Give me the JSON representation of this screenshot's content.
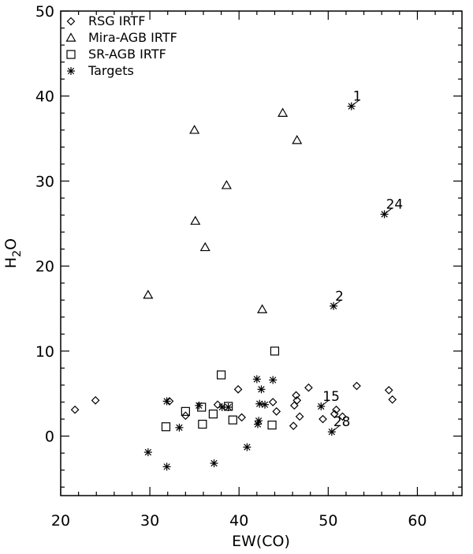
{
  "chart_data": {
    "type": "scatter",
    "title": "",
    "xlabel": "EW(CO)",
    "ylabel_base": "H",
    "ylabel_sub": "2",
    "ylabel_tail": "O",
    "xlim": [
      20,
      65
    ],
    "ylim": [
      -7,
      50
    ],
    "x_ticks": [
      20,
      30,
      40,
      50,
      60
    ],
    "y_ticks": [
      0,
      10,
      20,
      30,
      40,
      50
    ],
    "grid": false,
    "legend_position": "top-left",
    "series": [
      {
        "name": "RSG IRTF",
        "marker": "diamond",
        "points": [
          [
            21.6,
            3.1
          ],
          [
            23.9,
            4.2
          ],
          [
            32.2,
            4.1
          ],
          [
            34.0,
            2.4
          ],
          [
            37.6,
            3.7
          ],
          [
            39.9,
            5.5
          ],
          [
            40.3,
            2.2
          ],
          [
            43.8,
            4.0
          ],
          [
            44.2,
            2.9
          ],
          [
            46.1,
            1.2
          ],
          [
            46.2,
            3.6
          ],
          [
            46.4,
            4.8
          ],
          [
            46.5,
            4.2
          ],
          [
            46.8,
            2.3
          ],
          [
            47.8,
            5.7
          ],
          [
            49.4,
            2.0
          ],
          [
            50.7,
            2.6
          ],
          [
            50.9,
            3.1
          ],
          [
            51.6,
            2.3
          ],
          [
            53.2,
            5.9
          ],
          [
            56.8,
            5.4
          ],
          [
            57.2,
            4.3
          ]
        ]
      },
      {
        "name": "Mira-AGB IRTF",
        "marker": "triangle",
        "points": [
          [
            29.8,
            16.6
          ],
          [
            35.0,
            36.0
          ],
          [
            35.1,
            25.3
          ],
          [
            36.2,
            22.2
          ],
          [
            38.6,
            29.5
          ],
          [
            42.6,
            14.9
          ],
          [
            44.9,
            38.0
          ],
          [
            46.5,
            34.8
          ]
        ]
      },
      {
        "name": "SR-AGB IRTF",
        "marker": "square",
        "points": [
          [
            31.8,
            1.1
          ],
          [
            34.0,
            2.9
          ],
          [
            35.8,
            3.4
          ],
          [
            35.9,
            1.4
          ],
          [
            37.1,
            2.6
          ],
          [
            38.0,
            7.2
          ],
          [
            38.8,
            3.5
          ],
          [
            39.3,
            1.9
          ],
          [
            43.7,
            1.3
          ],
          [
            44.0,
            10.0
          ]
        ]
      },
      {
        "name": "Targets",
        "marker": "asterisk",
        "points": [
          [
            29.8,
            -1.9
          ],
          [
            31.9,
            -3.6
          ],
          [
            31.9,
            4.1
          ],
          [
            33.3,
            1.0
          ],
          [
            35.5,
            3.6
          ],
          [
            37.2,
            -3.2
          ],
          [
            38.1,
            3.4
          ],
          [
            38.8,
            3.4
          ],
          [
            40.9,
            -1.3
          ],
          [
            42.0,
            6.7
          ],
          [
            42.1,
            1.4
          ],
          [
            42.2,
            1.8
          ],
          [
            42.3,
            3.8
          ],
          [
            42.5,
            5.5
          ],
          [
            42.9,
            3.7
          ],
          [
            43.8,
            6.6
          ],
          [
            49.2,
            3.5
          ],
          [
            50.4,
            0.5
          ],
          [
            50.6,
            15.3
          ],
          [
            52.6,
            38.8
          ],
          [
            56.3,
            26.1
          ]
        ]
      }
    ],
    "annotations": [
      {
        "text": "1",
        "x": 52.6,
        "y": 38.8
      },
      {
        "text": "24",
        "x": 56.3,
        "y": 26.1
      },
      {
        "text": "2",
        "x": 50.6,
        "y": 15.3
      },
      {
        "text": "15",
        "x": 49.2,
        "y": 3.5
      },
      {
        "text": "28",
        "x": 50.4,
        "y": 0.5
      }
    ]
  }
}
